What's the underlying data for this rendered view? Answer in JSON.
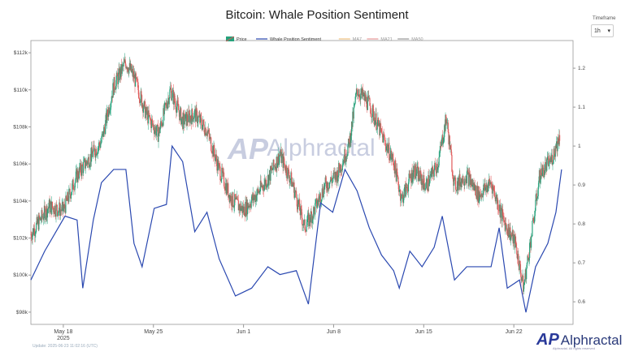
{
  "header": {
    "title": "Bitcoin: Whale Position Sentiment"
  },
  "timeframe": {
    "label": "Timeframe",
    "value": "1h"
  },
  "footer": {
    "update": "Update: 2025-06-23 11:02:16 (UTC)",
    "brand": "Alphractal",
    "rights": "Alphractal. All rights reserved"
  },
  "watermark": "Alphractal",
  "colors": {
    "up": "#26a17b",
    "down": "#e05a5a",
    "sentiment": "#2a48b0",
    "ma7": "#f0c080",
    "ma21": "#e89a9a",
    "ma50": "#999999"
  },
  "chart_data": {
    "type": "line",
    "title": "Bitcoin: Whale Position Sentiment",
    "legend": [
      "Price",
      "Whale Position Sentiment",
      "MA7",
      "MA21",
      "MA50"
    ],
    "legend_position": "top",
    "x_unit": "days since May 18 2025",
    "x_ticks": [
      {
        "v": 0,
        "label": "May 18",
        "sub": "2025"
      },
      {
        "v": 7,
        "label": "May 25"
      },
      {
        "v": 14,
        "label": "Jun 1"
      },
      {
        "v": 21,
        "label": "Jun 8"
      },
      {
        "v": 28,
        "label": "Jun 15"
      },
      {
        "v": 35,
        "label": "Jun 22"
      }
    ],
    "xlim": [
      -2.52,
      39.6
    ],
    "y_left": {
      "ticks": [
        {
          "v": 98,
          "label": "$98k"
        },
        {
          "v": 100,
          "label": "$100k"
        },
        {
          "v": 102,
          "label": "$102k"
        },
        {
          "v": 104,
          "label": "$104k"
        },
        {
          "v": 106,
          "label": "$106k"
        },
        {
          "v": 108,
          "label": "$108k"
        },
        {
          "v": 110,
          "label": "$110k"
        },
        {
          "v": 112,
          "label": "$112k"
        }
      ],
      "lim": [
        97.34,
        112.66
      ]
    },
    "y_right": {
      "ticks": [
        {
          "v": 0.6,
          "label": "0.6"
        },
        {
          "v": 0.7,
          "label": "0.7"
        },
        {
          "v": 0.8,
          "label": "0.8"
        },
        {
          "v": 0.9,
          "label": "0.9"
        },
        {
          "v": 1.0,
          "label": "1"
        },
        {
          "v": 1.1,
          "label": "1.1"
        },
        {
          "v": 1.2,
          "label": "1.2"
        }
      ],
      "lim": [
        0.542,
        1.271
      ]
    },
    "price": [
      [
        -2.52,
        102.2
      ],
      [
        -1.13,
        103.7
      ],
      [
        0,
        103.5
      ],
      [
        1.07,
        105.4
      ],
      [
        2.02,
        106.3
      ],
      [
        2.96,
        107.2
      ],
      [
        3.91,
        110.2
      ],
      [
        4.86,
        111.5
      ],
      [
        5.49,
        110.7
      ],
      [
        6.43,
        108.7
      ],
      [
        7.38,
        107.6
      ],
      [
        8.32,
        110.0
      ],
      [
        9.27,
        108.3
      ],
      [
        10.21,
        108.7
      ],
      [
        11.16,
        107.8
      ],
      [
        12.11,
        105.7
      ],
      [
        13.05,
        104.1
      ],
      [
        14.0,
        103.5
      ],
      [
        14.94,
        104.3
      ],
      [
        15.89,
        105.2
      ],
      [
        16.83,
        106.5
      ],
      [
        17.78,
        105.0
      ],
      [
        18.73,
        102.6
      ],
      [
        19.36,
        103.3
      ],
      [
        20.3,
        104.8
      ],
      [
        21.25,
        105.4
      ],
      [
        22.19,
        107.0
      ],
      [
        22.82,
        110.0
      ],
      [
        23.77,
        109.2
      ],
      [
        24.72,
        107.6
      ],
      [
        25.66,
        106.1
      ],
      [
        26.29,
        104.1
      ],
      [
        27.24,
        105.7
      ],
      [
        28.18,
        104.8
      ],
      [
        29.13,
        106.1
      ],
      [
        29.76,
        108.5
      ],
      [
        30.39,
        104.8
      ],
      [
        31.34,
        105.4
      ],
      [
        32.28,
        104.3
      ],
      [
        33.23,
        105.0
      ],
      [
        34.17,
        103.0
      ],
      [
        35.12,
        101.7
      ],
      [
        35.75,
        99.3
      ],
      [
        36.38,
        102.2
      ],
      [
        37.01,
        105.4
      ],
      [
        37.96,
        106.3
      ],
      [
        38.59,
        107.6
      ]
    ],
    "sentiment": [
      [
        -2.52,
        0.656
      ],
      [
        -1.45,
        0.73
      ],
      [
        0.13,
        0.82
      ],
      [
        1.07,
        0.81
      ],
      [
        1.51,
        0.635
      ],
      [
        2.33,
        0.81
      ],
      [
        2.96,
        0.906
      ],
      [
        3.91,
        0.94
      ],
      [
        4.86,
        0.94
      ],
      [
        5.49,
        0.75
      ],
      [
        6.12,
        0.69
      ],
      [
        7.06,
        0.84
      ],
      [
        8.01,
        0.85
      ],
      [
        8.45,
        1.0
      ],
      [
        9.27,
        0.96
      ],
      [
        10.21,
        0.78
      ],
      [
        11.16,
        0.83
      ],
      [
        12.11,
        0.71
      ],
      [
        13.37,
        0.615
      ],
      [
        14.63,
        0.635
      ],
      [
        15.89,
        0.69
      ],
      [
        16.83,
        0.67
      ],
      [
        18.1,
        0.68
      ],
      [
        19.04,
        0.594
      ],
      [
        19.99,
        0.854
      ],
      [
        20.93,
        0.83
      ],
      [
        21.88,
        0.94
      ],
      [
        22.82,
        0.885
      ],
      [
        23.77,
        0.79
      ],
      [
        24.72,
        0.72
      ],
      [
        25.66,
        0.68
      ],
      [
        26.1,
        0.635
      ],
      [
        26.92,
        0.73
      ],
      [
        27.87,
        0.69
      ],
      [
        28.81,
        0.74
      ],
      [
        29.44,
        0.82
      ],
      [
        30.39,
        0.656
      ],
      [
        31.34,
        0.69
      ],
      [
        32.28,
        0.69
      ],
      [
        33.23,
        0.69
      ],
      [
        33.86,
        0.79
      ],
      [
        34.49,
        0.635
      ],
      [
        35.44,
        0.656
      ],
      [
        35.94,
        0.573
      ],
      [
        36.69,
        0.69
      ],
      [
        37.64,
        0.75
      ],
      [
        38.27,
        0.83
      ],
      [
        38.71,
        0.94
      ]
    ]
  }
}
